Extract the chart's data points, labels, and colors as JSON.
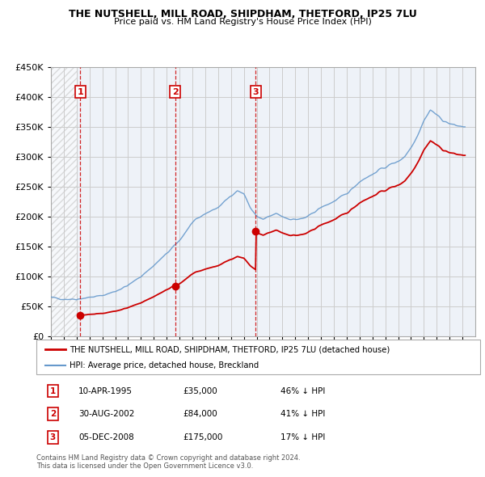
{
  "title1": "THE NUTSHELL, MILL ROAD, SHIPDHAM, THETFORD, IP25 7LU",
  "title2": "Price paid vs. HM Land Registry's House Price Index (HPI)",
  "legend_red": "THE NUTSHELL, MILL ROAD, SHIPDHAM, THETFORD, IP25 7LU (detached house)",
  "legend_blue": "HPI: Average price, detached house, Breckland",
  "footer": "Contains HM Land Registry data © Crown copyright and database right 2024.\nThis data is licensed under the Open Government Licence v3.0.",
  "ylim": [
    0,
    450000
  ],
  "yticks": [
    0,
    50000,
    100000,
    150000,
    200000,
    250000,
    300000,
    350000,
    400000,
    450000
  ],
  "red_color": "#cc0000",
  "blue_color": "#6699cc",
  "grid_color": "#cccccc",
  "plot_bg": "#eef2f8",
  "x_start_year": 1993,
  "x_end_year": 2026,
  "sale_years": [
    1995.29,
    2002.66,
    2008.93
  ],
  "sale_prices": [
    35000,
    84000,
    175000
  ],
  "sale_nums": [
    "1",
    "2",
    "3"
  ],
  "table_data": [
    [
      "1",
      "10-APR-1995",
      "£35,000",
      "46% ↓ HPI"
    ],
    [
      "2",
      "30-AUG-2002",
      "£84,000",
      "41% ↓ HPI"
    ],
    [
      "3",
      "05-DEC-2008",
      "£175,000",
      "17% ↓ HPI"
    ]
  ],
  "hpi_keypoints": [
    [
      1993.0,
      65000
    ],
    [
      1994.0,
      62000
    ],
    [
      1995.0,
      62000
    ],
    [
      1996.0,
      65000
    ],
    [
      1997.0,
      68000
    ],
    [
      1998.0,
      75000
    ],
    [
      1999.0,
      85000
    ],
    [
      2000.0,
      100000
    ],
    [
      2001.0,
      118000
    ],
    [
      2002.0,
      138000
    ],
    [
      2003.0,
      160000
    ],
    [
      2004.0,
      190000
    ],
    [
      2005.0,
      205000
    ],
    [
      2006.0,
      215000
    ],
    [
      2007.0,
      235000
    ],
    [
      2007.5,
      243000
    ],
    [
      2008.0,
      238000
    ],
    [
      2008.5,
      215000
    ],
    [
      2009.0,
      200000
    ],
    [
      2009.5,
      195000
    ],
    [
      2010.0,
      200000
    ],
    [
      2010.5,
      205000
    ],
    [
      2011.0,
      200000
    ],
    [
      2011.5,
      196000
    ],
    [
      2012.0,
      195000
    ],
    [
      2012.5,
      196000
    ],
    [
      2013.0,
      200000
    ],
    [
      2013.5,
      208000
    ],
    [
      2014.0,
      215000
    ],
    [
      2014.5,
      220000
    ],
    [
      2015.0,
      225000
    ],
    [
      2015.5,
      232000
    ],
    [
      2016.0,
      238000
    ],
    [
      2016.5,
      248000
    ],
    [
      2017.0,
      258000
    ],
    [
      2017.5,
      265000
    ],
    [
      2018.0,
      270000
    ],
    [
      2018.5,
      278000
    ],
    [
      2019.0,
      282000
    ],
    [
      2019.5,
      288000
    ],
    [
      2020.0,
      292000
    ],
    [
      2020.5,
      300000
    ],
    [
      2021.0,
      315000
    ],
    [
      2021.5,
      335000
    ],
    [
      2022.0,
      360000
    ],
    [
      2022.5,
      378000
    ],
    [
      2023.0,
      370000
    ],
    [
      2023.5,
      360000
    ],
    [
      2024.0,
      355000
    ],
    [
      2024.5,
      352000
    ],
    [
      2025.0,
      350000
    ]
  ]
}
